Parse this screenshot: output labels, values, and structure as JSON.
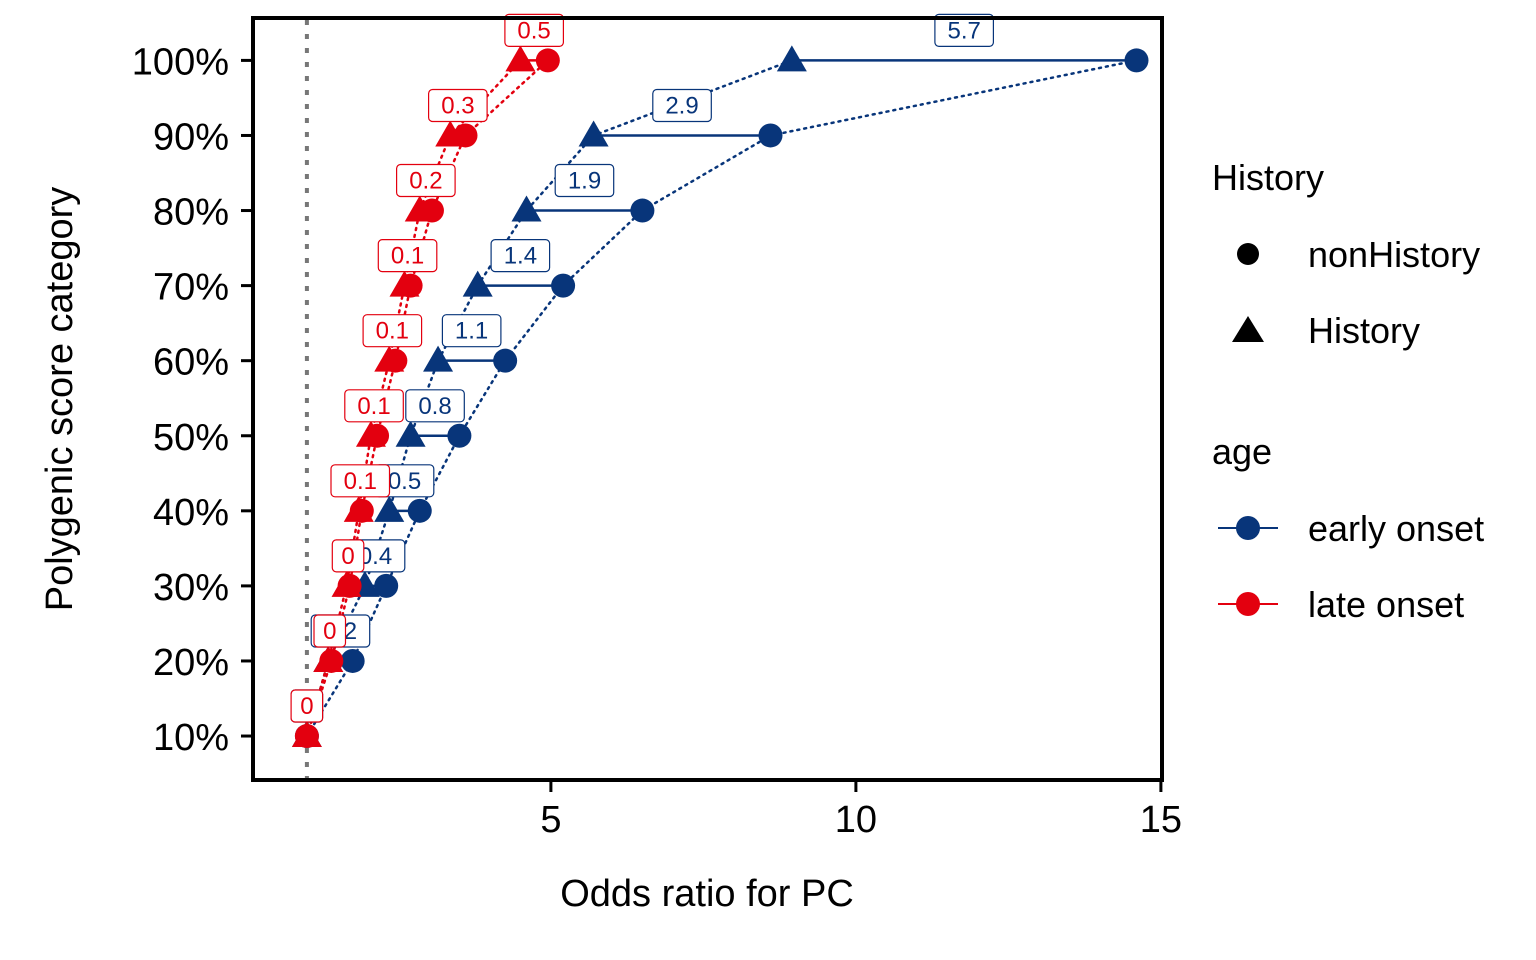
{
  "chart_data": {
    "type": "scatter",
    "xlabel": "Odds ratio for PC",
    "ylabel": "Polygenic score category",
    "x_ticks": [
      "5",
      "10",
      "15"
    ],
    "x_tick_values": [
      5,
      10,
      15
    ],
    "y_ticks": [
      "10%",
      "20%",
      "30%",
      "40%",
      "50%",
      "60%",
      "70%",
      "80%",
      "90%",
      "100%"
    ],
    "xlim": [
      0.1,
      15.2
    ],
    "ylim": [
      0.05,
      1.05
    ],
    "reference_line_x": 1,
    "grid": false,
    "legend_placement": "right",
    "legend": {
      "shape": {
        "title": "History",
        "entries": [
          "nonHistory",
          "History"
        ]
      },
      "color": {
        "title": "age",
        "entries": [
          "early onset",
          "late onset"
        ]
      }
    },
    "series": [
      {
        "name": "early onset",
        "color": "#08357a",
        "categories": [
          0.1,
          0.2,
          0.3,
          0.4,
          0.5,
          0.6,
          0.7,
          0.8,
          0.9,
          1.0
        ],
        "nonHistory": [
          1.0,
          1.75,
          2.3,
          2.85,
          3.5,
          4.25,
          5.2,
          6.5,
          8.6,
          14.6
        ],
        "History": [
          1.0,
          1.35,
          1.95,
          2.35,
          2.7,
          3.15,
          3.8,
          4.6,
          5.7,
          8.95
        ],
        "labels": [
          "0",
          "0.2",
          "0.4",
          "0.5",
          "0.8",
          "1.1",
          "1.4",
          "1.9",
          "2.9",
          "5.7"
        ]
      },
      {
        "name": "late onset",
        "color": "#e3000f",
        "categories": [
          0.1,
          0.2,
          0.3,
          0.4,
          0.5,
          0.6,
          0.7,
          0.8,
          0.9,
          1.0
        ],
        "nonHistory": [
          1.0,
          1.4,
          1.7,
          1.9,
          2.15,
          2.45,
          2.7,
          3.05,
          3.6,
          4.95
        ],
        "History": [
          1.0,
          1.35,
          1.65,
          1.85,
          2.05,
          2.35,
          2.6,
          2.85,
          3.35,
          4.5
        ],
        "labels": [
          "0",
          "0",
          "0",
          "0.1",
          "0.1",
          "0.1",
          "0.1",
          "0.2",
          "0.3",
          "0.5"
        ]
      }
    ]
  }
}
